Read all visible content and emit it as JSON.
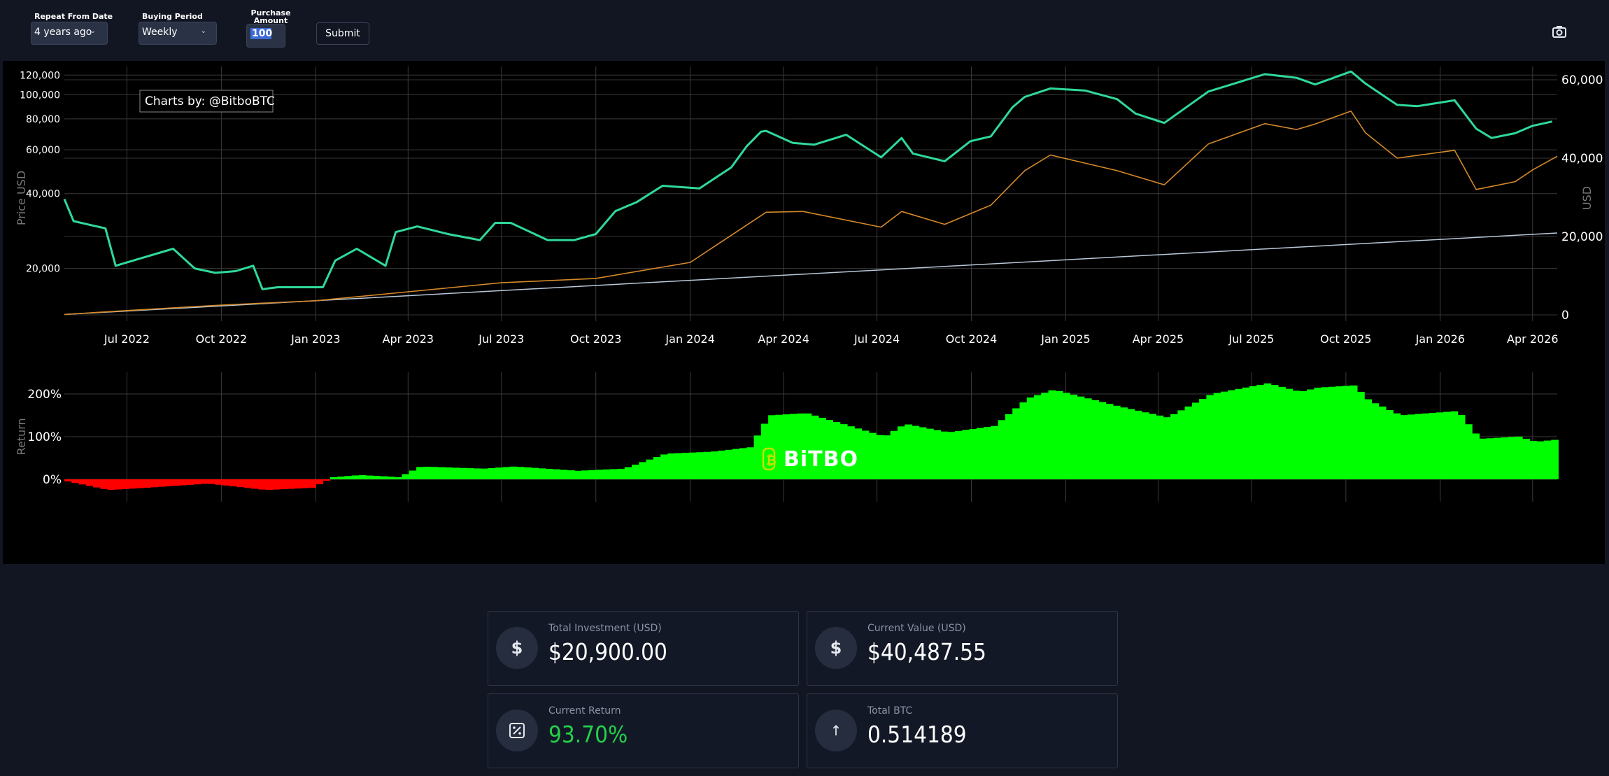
{
  "controls": {
    "repeat_label": "Repeat From Date",
    "repeat_value": "4 years ago",
    "period_label": "Buying Period",
    "period_value": "Weekly",
    "amount_label_line1": "Purchase",
    "amount_label_line2": "Amount (USD)",
    "amount_value": "100",
    "submit_label": "Submit",
    "camera_icon": "camera-icon"
  },
  "watermark": "Charts by: @BitboBTC",
  "logo_text": "BiTBO",
  "colors": {
    "btc_value_line": "#2fd99a",
    "portfolio_line": "#d4892a",
    "investment_line": "#b8c8d8",
    "return_positive": "#00ff00",
    "return_negative": "#ff0000",
    "accent_green": "#22d14a"
  },
  "chart_data": [
    {
      "type": "line",
      "ylabel": "Price USD",
      "y2label": "USD",
      "yscale": "log",
      "y_ticks": [
        "20,000",
        "40,000",
        "60,000",
        "80,000",
        "100,000",
        "120,000"
      ],
      "y2_ticks": [
        "0",
        "20,000",
        "40,000",
        "60,000"
      ],
      "x_ticks": [
        "Jul 2022",
        "Oct 2022",
        "Jan 2023",
        "Apr 2023",
        "Jul 2023",
        "Oct 2023",
        "Jan 2024",
        "Apr 2024",
        "Jul 2024",
        "Oct 2024",
        "Jan 2025",
        "Apr 2025",
        "Jul 2025",
        "Oct 2025",
        "Jan 2026",
        "Apr 2026"
      ],
      "grid": true,
      "series": [
        {
          "axis": "left",
          "x": [
            "2022-05-01",
            "2022-05-10",
            "2022-05-25",
            "2022-06-10",
            "2022-06-20",
            "2022-07-15",
            "2022-08-15",
            "2022-09-05",
            "2022-09-25",
            "2022-10-15",
            "2022-11-01",
            "2022-11-10",
            "2022-11-25",
            "2022-12-20",
            "2023-01-08",
            "2023-01-20",
            "2023-02-10",
            "2023-03-10",
            "2023-03-20",
            "2023-04-10",
            "2023-05-10",
            "2023-06-10",
            "2023-06-25",
            "2023-07-10",
            "2023-08-15",
            "2023-09-10",
            "2023-10-01",
            "2023-10-20",
            "2023-11-10",
            "2023-12-05",
            "2024-01-10",
            "2024-02-10",
            "2024-02-25",
            "2024-03-10",
            "2024-03-15",
            "2024-04-10",
            "2024-05-01",
            "2024-06-01",
            "2024-07-05",
            "2024-07-25",
            "2024-08-05",
            "2024-09-05",
            "2024-09-30",
            "2024-10-20",
            "2024-11-10",
            "2024-11-22",
            "2024-12-17",
            "2025-01-20",
            "2025-02-20",
            "2025-03-10",
            "2025-04-07",
            "2025-05-20",
            "2025-07-14",
            "2025-08-14",
            "2025-09-01",
            "2025-10-06",
            "2025-10-20",
            "2025-11-20",
            "2025-12-10",
            "2026-01-15",
            "2026-02-05",
            "2026-02-20",
            "2026-03-15",
            "2026-04-01",
            "2026-04-20"
          ],
          "values": [
            38000,
            31000,
            30000,
            29000,
            20500,
            22000,
            24000,
            20000,
            19200,
            19500,
            20500,
            16500,
            16800,
            16800,
            16800,
            21500,
            24000,
            20500,
            28000,
            29500,
            27500,
            26000,
            30500,
            30500,
            26000,
            26000,
            27500,
            34000,
            37000,
            43000,
            42000,
            51000,
            62000,
            71000,
            71500,
            64000,
            63000,
            69000,
            56000,
            67000,
            58000,
            54000,
            65000,
            68000,
            89000,
            98000,
            106000,
            104000,
            96000,
            84000,
            77000,
            103000,
            121000,
            117000,
            110000,
            124000,
            111000,
            91000,
            90000,
            95000,
            73000,
            67000,
            70000,
            75000,
            78000
          ]
        },
        {
          "axis": "right",
          "x": [
            "2022-05-01",
            "2022-07-01",
            "2022-10-01",
            "2023-01-01",
            "2023-04-01",
            "2023-07-01",
            "2023-10-01",
            "2024-01-01",
            "2024-03-15",
            "2024-04-20",
            "2024-07-05",
            "2024-07-25",
            "2024-09-05",
            "2024-10-20",
            "2024-11-22",
            "2024-12-17",
            "2025-02-20",
            "2025-04-07",
            "2025-05-20",
            "2025-07-14",
            "2025-08-14",
            "2025-09-01",
            "2025-10-06",
            "2025-10-20",
            "2025-11-20",
            "2026-01-15",
            "2026-02-05",
            "2026-03-15",
            "2026-04-01",
            "2026-04-25"
          ],
          "values": [
            100,
            1100,
            2500,
            3600,
            5900,
            8200,
            9300,
            13400,
            26200,
            26400,
            22400,
            26400,
            23100,
            28000,
            36800,
            40800,
            36800,
            33200,
            43600,
            48800,
            47300,
            48700,
            52000,
            46500,
            40000,
            42000,
            32000,
            34000,
            37000,
            40488
          ]
        },
        {
          "axis": "right",
          "x": [
            "2022-05-01",
            "2026-04-25"
          ],
          "values": [
            100,
            20900
          ]
        }
      ]
    },
    {
      "type": "bar",
      "ylabel": "Return",
      "y_ticks": [
        "0%",
        "100%",
        "200%"
      ],
      "x_ticks": [
        "Jul 2022",
        "Oct 2022",
        "Jan 2023",
        "Apr 2023",
        "Jul 2023",
        "Oct 2023",
        "Jan 2024",
        "Apr 2024",
        "Jul 2024",
        "Oct 2024",
        "Jan 2025",
        "Apr 2025",
        "Jul 2025",
        "Oct 2025",
        "Jan 2026",
        "Apr 2026"
      ],
      "grid": true,
      "x": [
        "2022-05-01",
        "2022-06-10",
        "2022-07-15",
        "2022-09-15",
        "2022-11-10",
        "2022-12-25",
        "2023-01-15",
        "2023-02-10",
        "2023-03-20",
        "2023-04-10",
        "2023-06-10",
        "2023-07-10",
        "2023-09-10",
        "2023-10-25",
        "2023-12-05",
        "2024-01-20",
        "2024-02-25",
        "2024-03-15",
        "2024-04-20",
        "2024-06-01",
        "2024-07-05",
        "2024-07-25",
        "2024-09-05",
        "2024-10-20",
        "2024-11-22",
        "2024-12-17",
        "2025-02-20",
        "2025-04-07",
        "2025-05-20",
        "2025-07-14",
        "2025-08-14",
        "2025-09-01",
        "2025-10-06",
        "2025-10-20",
        "2025-11-20",
        "2026-01-15",
        "2026-02-05",
        "2026-03-15",
        "2026-04-01",
        "2026-04-25"
      ],
      "values": [
        -5,
        -25,
        -20,
        -10,
        -25,
        -20,
        5,
        10,
        5,
        30,
        25,
        30,
        20,
        25,
        60,
        65,
        75,
        150,
        155,
        125,
        100,
        130,
        110,
        125,
        190,
        210,
        170,
        145,
        200,
        225,
        205,
        215,
        220,
        185,
        150,
        160,
        95,
        100,
        88,
        94
      ]
    }
  ],
  "stats": [
    {
      "label": "Total Investment (USD)",
      "value": "$20,900.00",
      "icon": "dollar-icon"
    },
    {
      "label": "Current Value (USD)",
      "value": "$40,487.55",
      "icon": "dollar-icon"
    },
    {
      "label": "Current Return",
      "value": "93.70%",
      "icon": "percent-icon"
    },
    {
      "label": "Total BTC",
      "value": "0.514189",
      "icon": "arrow-up-icon"
    }
  ]
}
